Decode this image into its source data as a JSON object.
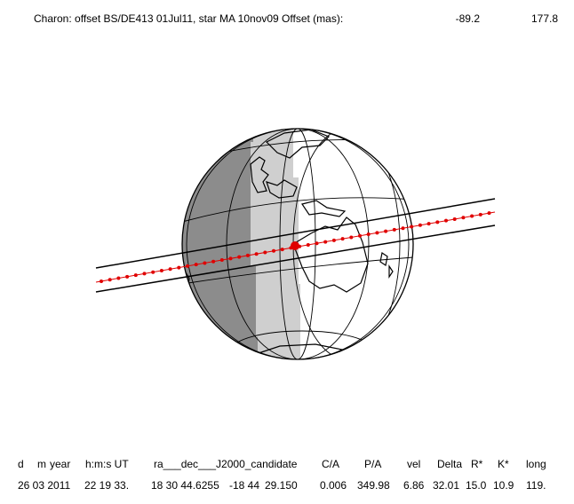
{
  "header": {
    "title": "Charon: offset BS/DE413 01Jul11, star MA 10nov09  Offset (mas):",
    "offset": [
      "-89.2",
      "177.8"
    ]
  },
  "table": {
    "columns": [
      "d",
      "m",
      "year",
      "h:m:s UT",
      "ra___dec___J2000_candidate",
      "C/A",
      "P/A",
      "vel",
      "Delta",
      "R*",
      "K*",
      "long"
    ],
    "rows": [
      [
        "26 03 2011",
        "22 19 33.",
        "18 30 44.6255",
        "-18 44",
        "29.150",
        "0.006",
        "349.98",
        "6.86",
        "32.01",
        "15.0",
        "10.9",
        "119."
      ]
    ]
  }
}
